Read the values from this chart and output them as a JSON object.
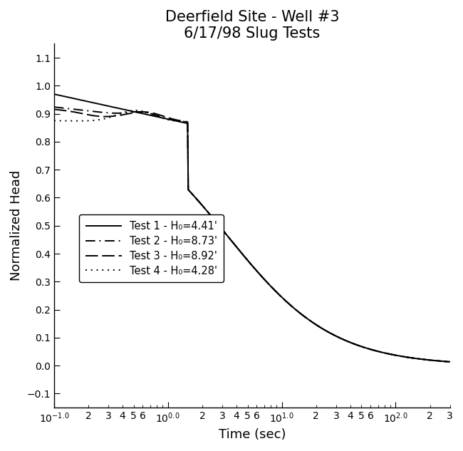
{
  "title_line1": "Deerfield Site - Well #3",
  "title_line2": "6/17/98 Slug Tests",
  "xlabel": "Time (sec)",
  "ylabel": "Normalized Head",
  "xlim": [
    0.1,
    300.0
  ],
  "ylim": [
    -0.15,
    1.15
  ],
  "yticks": [
    -0.1,
    0.0,
    0.1,
    0.2,
    0.3,
    0.4,
    0.5,
    0.6,
    0.7,
    0.8,
    0.9,
    1.0,
    1.1
  ],
  "background_color": "#ffffff",
  "line_color": "#000000",
  "legend_labels": [
    "Test 1 - H₀=4.41'",
    "Test 2 - H₀=8.73'",
    "Test 3 - H₀=8.92'",
    "Test 4 - H₀=4.28'"
  ],
  "title_fontsize": 15,
  "label_fontsize": 13,
  "tick_fontsize": 10,
  "legend_fontsize": 10.5
}
